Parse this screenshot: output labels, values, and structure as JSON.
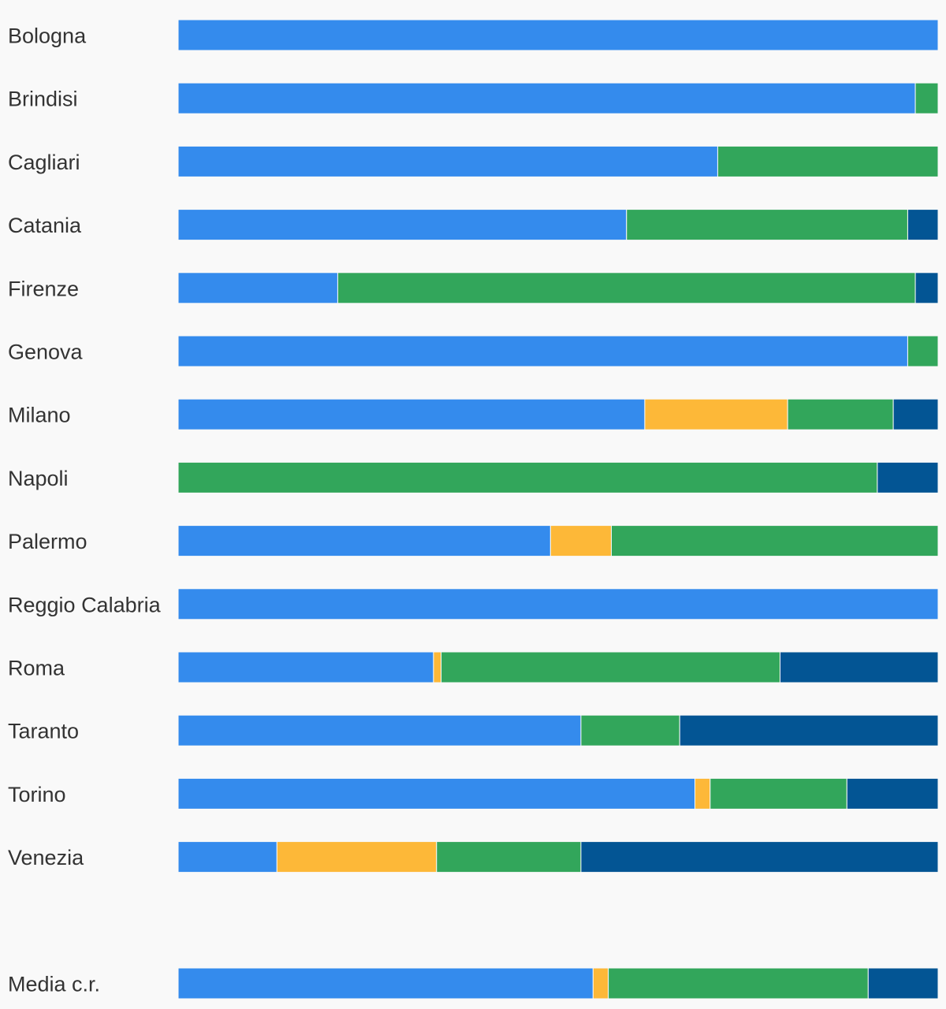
{
  "chart_data": {
    "type": "bar",
    "orientation": "horizontal",
    "stacked": "percent",
    "legend": "none",
    "grid": false,
    "xlim": [
      0,
      100
    ],
    "colors": [
      "#348bed",
      "#fdb838",
      "#32a65b",
      "#035594"
    ],
    "categories": [
      "Bologna",
      "Brindisi",
      "Cagliari",
      "Catania",
      "Firenze",
      "Genova",
      "Milano",
      "Napoli",
      "Palermo",
      "Reggio Calabria",
      "Roma",
      "Taranto",
      "Torino",
      "Venezia",
      "",
      "Media c.r."
    ],
    "series": [
      {
        "values": [
          100,
          97,
          71,
          59,
          21,
          96,
          61.4,
          0,
          49,
          100,
          33.6,
          53,
          68,
          13,
          null,
          54.6
        ]
      },
      {
        "values": [
          0,
          0,
          0,
          0,
          0,
          0,
          18.8,
          0,
          8,
          0,
          1,
          0,
          2,
          21,
          null,
          2
        ]
      },
      {
        "values": [
          0,
          3,
          29,
          37,
          76,
          4,
          13.9,
          92,
          43,
          0,
          44.6,
          13,
          18,
          19,
          null,
          34.2
        ]
      },
      {
        "values": [
          0,
          0,
          0,
          4,
          3,
          0,
          5.9,
          8,
          0,
          0,
          20.8,
          34,
          12,
          47,
          null,
          9.2
        ]
      }
    ]
  }
}
